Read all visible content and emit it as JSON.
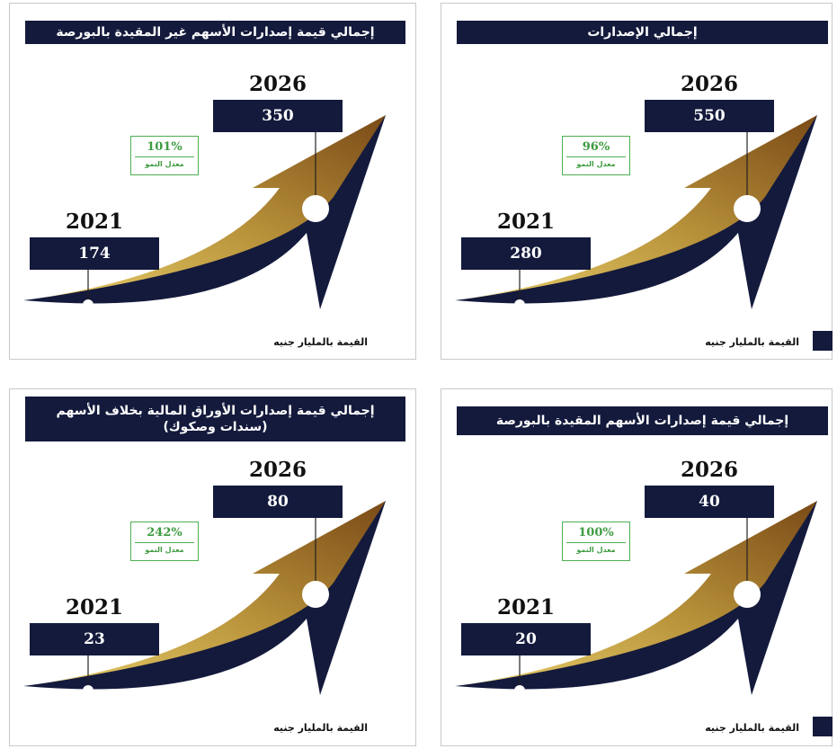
{
  "panels": [
    {
      "title": "إجمالي الإصدارات",
      "year_start": "2021",
      "value_start": "280",
      "year_end": "2026",
      "value_end": "550",
      "growth": "96%",
      "growth_label": "معدل النمو",
      "unit": "القيمة بالمليار جنيه",
      "marker": true
    },
    {
      "title": "إجمالي قيمة إصدارات الأسهم غير المقيدة بالبورصة",
      "year_start": "2021",
      "value_start": "174",
      "year_end": "2026",
      "value_end": "350",
      "growth": "101%",
      "growth_label": "معدل النمو",
      "unit": "القيمة بالمليار جنيه",
      "marker": false
    },
    {
      "title": "إجمالي قيمة إصدارات الأسهم المقيدة بالبورصة",
      "year_start": "2021",
      "value_start": "20",
      "year_end": "2026",
      "value_end": "40",
      "growth": "100%",
      "growth_label": "معدل النمو",
      "unit": "القيمة بالمليار جنيه",
      "marker": true
    },
    {
      "title": "إجمالي قيمة إصدارات الأوراق المالية بخلاف الأسهم (سندات وصكوك)",
      "year_start": "2021",
      "value_start": "23",
      "year_end": "2026",
      "value_end": "80",
      "growth": "242%",
      "growth_label": "معدل النمو",
      "unit": "القيمة بالمليار جنيه",
      "marker": false
    }
  ]
}
